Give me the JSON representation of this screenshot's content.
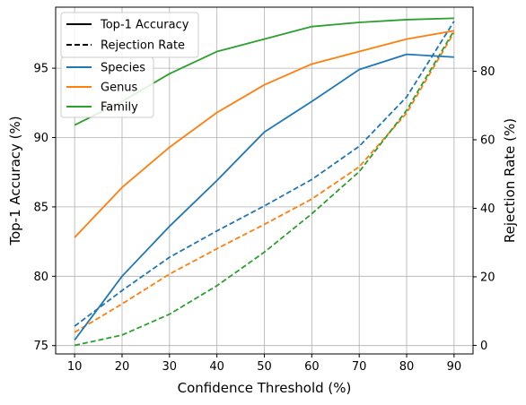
{
  "chart_data": {
    "type": "line",
    "x_label": "Confidence Threshold (%)",
    "y_left_label": "Top-1 Accuracy (%)",
    "y_right_label": "Rejection Rate (%)",
    "x": [
      10,
      20,
      30,
      40,
      50,
      60,
      70,
      80,
      90
    ],
    "xlim": [
      6,
      94
    ],
    "y_left_lim": [
      74.4,
      99.4
    ],
    "y_right_lim": [
      -2.5,
      98.7
    ],
    "x_ticks": [
      "10",
      "20",
      "30",
      "40",
      "50",
      "60",
      "70",
      "80",
      "90"
    ],
    "y_left_ticks": [
      "75",
      "80",
      "85",
      "90",
      "95"
    ],
    "y_right_ticks": [
      "0",
      "20",
      "40",
      "60",
      "80"
    ],
    "grid": true,
    "colors": {
      "Species": "#1f77b4",
      "Genus": "#ff7f0e",
      "Family": "#2ca02c"
    },
    "style_legend": [
      {
        "label": "Top-1 Accuracy",
        "style": "solid"
      },
      {
        "label": "Rejection Rate",
        "style": "dashed"
      }
    ],
    "series_legend": [
      "Species",
      "Genus",
      "Family"
    ],
    "accuracy_series": [
      {
        "name": "Species",
        "values": [
          75.4,
          80.0,
          83.6,
          86.9,
          90.4,
          92.6,
          94.9,
          96.0,
          95.8
        ]
      },
      {
        "name": "Genus",
        "values": [
          82.8,
          86.4,
          89.3,
          91.8,
          93.8,
          95.3,
          96.2,
          97.1,
          97.7
        ]
      },
      {
        "name": "Family",
        "values": [
          90.9,
          92.6,
          94.6,
          96.2,
          97.1,
          98.0,
          98.3,
          98.5,
          98.6
        ]
      }
    ],
    "rejection_series": [
      {
        "name": "Species",
        "values": [
          5.6,
          16.0,
          25.7,
          33.4,
          40.7,
          48.4,
          58.1,
          72.5,
          94.6
        ]
      },
      {
        "name": "Genus",
        "values": [
          3.8,
          12.1,
          20.8,
          28.2,
          35.3,
          42.7,
          52.1,
          67.8,
          91.3
        ]
      },
      {
        "name": "Family",
        "values": [
          0.0,
          3.0,
          9.1,
          17.4,
          27.2,
          38.4,
          50.7,
          68.6,
          91.9
        ]
      }
    ]
  }
}
